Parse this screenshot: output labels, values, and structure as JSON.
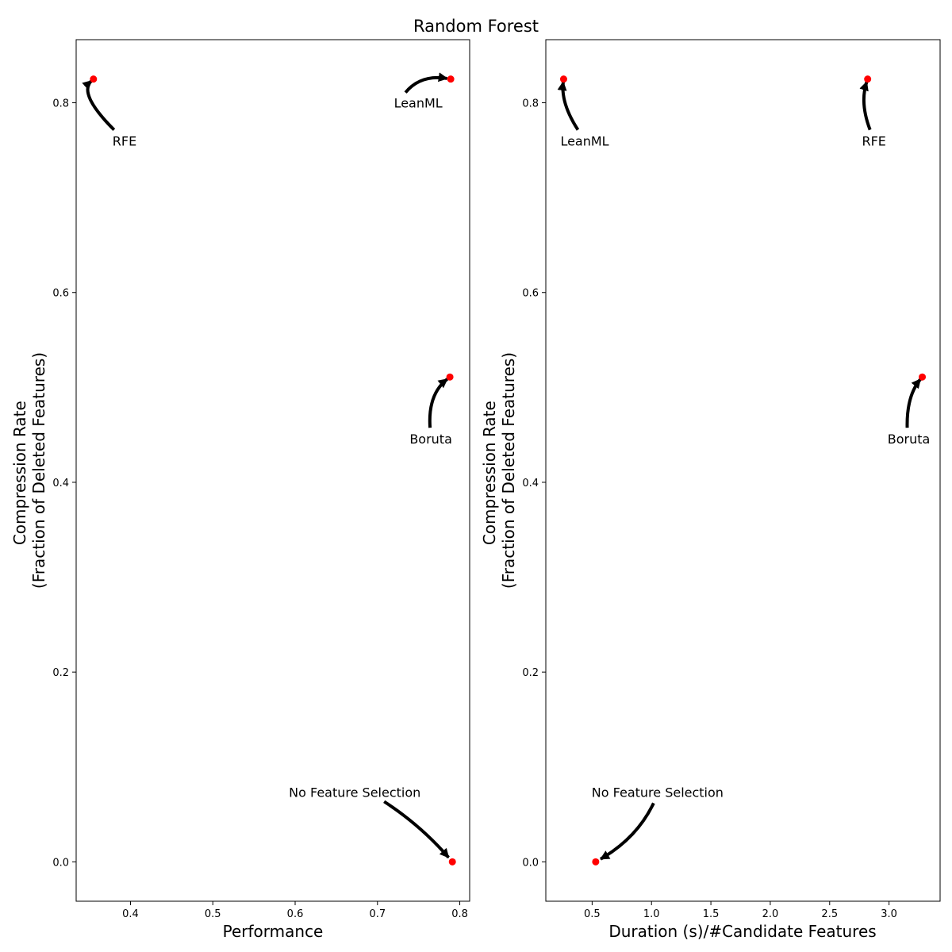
{
  "figure": {
    "title": "Random Forest"
  },
  "chart_data": [
    {
      "type": "scatter",
      "xlabel": "Performance",
      "ylabel_lines": [
        "Compression Rate",
        "(Fraction of Deleted Features)"
      ],
      "xlim": [
        0.334,
        0.812
      ],
      "ylim": [
        -0.0415,
        0.8665
      ],
      "xticks": [
        0.4,
        0.5,
        0.6,
        0.7,
        0.8
      ],
      "yticks": [
        0.0,
        0.2,
        0.4,
        0.6,
        0.8
      ],
      "marker_color": "#ff0000",
      "points": [
        {
          "label": "RFE",
          "x": 0.355,
          "y": 0.825
        },
        {
          "label": "LeanML",
          "x": 0.789,
          "y": 0.825
        },
        {
          "label": "Boruta",
          "x": 0.788,
          "y": 0.511
        },
        {
          "label": "No Feature Selection",
          "x": 0.791,
          "y": 0.0
        }
      ]
    },
    {
      "type": "scatter",
      "xlabel": "Duration (s)/#Candidate Features",
      "ylabel_lines": [
        "Compression Rate",
        "(Fraction of Deleted Features)"
      ],
      "xlim": [
        0.11,
        3.43
      ],
      "ylim": [
        -0.0415,
        0.8665
      ],
      "xticks": [
        0.5,
        1.0,
        1.5,
        2.0,
        2.5,
        3.0
      ],
      "yticks": [
        0.0,
        0.2,
        0.4,
        0.6,
        0.8
      ],
      "marker_color": "#ff0000",
      "points": [
        {
          "label": "LeanML",
          "x": 0.26,
          "y": 0.825
        },
        {
          "label": "RFE",
          "x": 2.82,
          "y": 0.825
        },
        {
          "label": "Boruta",
          "x": 3.28,
          "y": 0.511
        },
        {
          "label": "No Feature Selection",
          "x": 0.53,
          "y": 0.0
        }
      ]
    }
  ]
}
